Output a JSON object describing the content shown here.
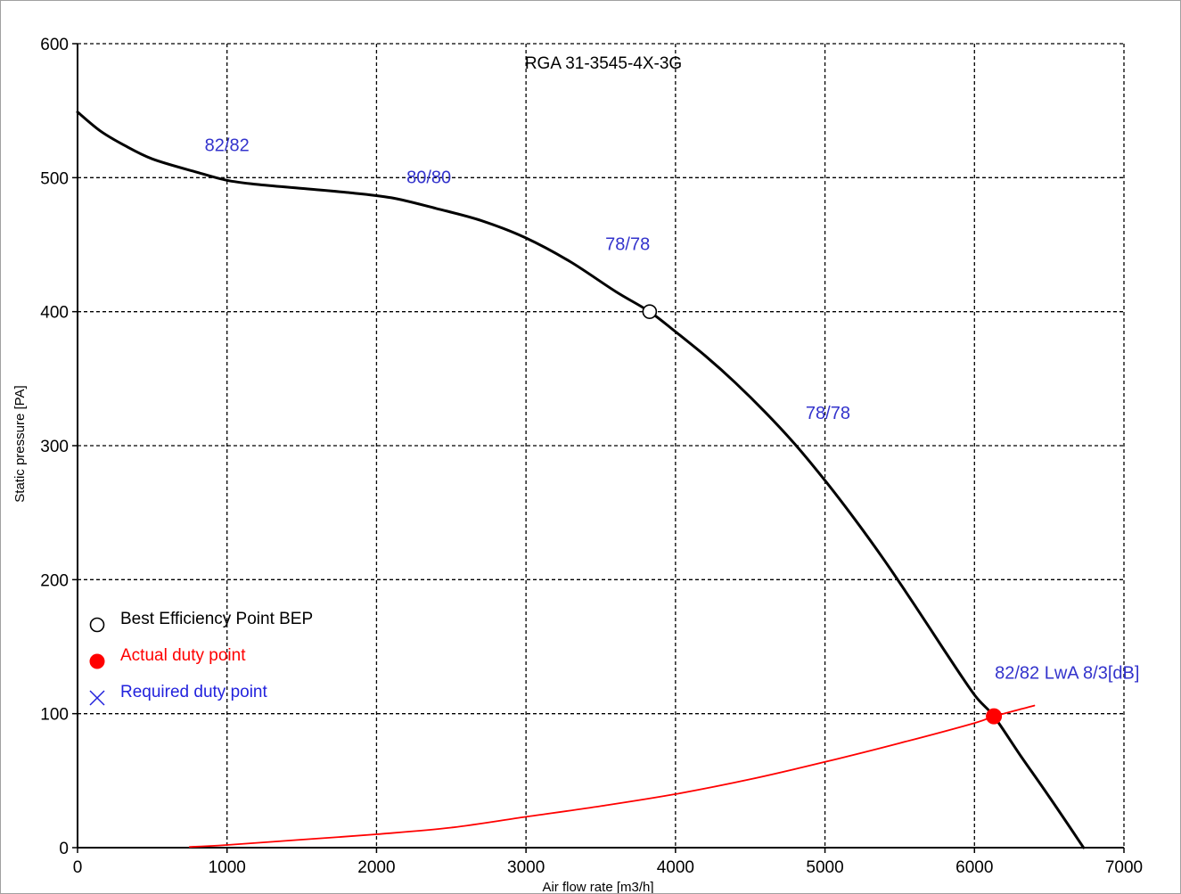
{
  "chart_data": {
    "type": "line",
    "title": "RGA 31-3545-4X-3G",
    "xlabel": "Air flow rate [m3/h]",
    "ylabel": "Static pressure [PA]",
    "xlim": [
      0,
      7000
    ],
    "ylim": [
      0,
      600
    ],
    "xticks": [
      "0",
      "1000",
      "2000",
      "3000",
      "4000",
      "5000",
      "6000",
      "7000"
    ],
    "yticks": [
      "0",
      "100",
      "200",
      "300",
      "400",
      "500",
      "600"
    ],
    "grid": true,
    "series": [
      {
        "name": "fan curve",
        "color": "#000000",
        "x": [
          0,
          150,
          300,
          500,
          800,
          1000,
          1200,
          1500,
          1800,
          2100,
          2400,
          2700,
          3000,
          3300,
          3600,
          3827,
          4000,
          4200,
          4400,
          4600,
          4800,
          5000,
          5200,
          5400,
          5600,
          5800,
          6000,
          6130,
          6300,
          6500,
          6730
        ],
        "y": [
          549,
          535,
          525,
          514,
          504,
          498,
          495,
          492,
          489,
          485,
          477,
          468,
          455,
          437,
          415,
          400,
          385,
          367,
          347,
          325,
          301,
          274,
          245,
          214,
          181,
          147,
          114,
          98,
          70,
          38,
          0
        ]
      },
      {
        "name": "system curve",
        "color": "#ff0000",
        "x": [
          750,
          1000,
          1500,
          2000,
          2500,
          3000,
          3500,
          4000,
          4500,
          5000,
          5500,
          6000,
          6130,
          6400
        ],
        "y": [
          0.5,
          2,
          6,
          10,
          15,
          23,
          31,
          40,
          51,
          64,
          78,
          93,
          98,
          106
        ]
      }
    ],
    "points": {
      "bep": {
        "x": 3827,
        "y": 400
      },
      "duty": {
        "x": 6130,
        "y": 98
      }
    },
    "annotations": [
      {
        "text": "82/82",
        "x": 1000,
        "y": 520
      },
      {
        "text": "80/80",
        "x": 2350,
        "y": 496
      },
      {
        "text": "78/78",
        "x": 3680,
        "y": 446
      },
      {
        "text": "78/78",
        "x": 5020,
        "y": 320
      },
      {
        "text": "82/82 LwA 8/3[dB]",
        "x": 6620,
        "y": 126
      }
    ],
    "annotation_color": "#3333cc",
    "legend": {
      "placement": "left",
      "entries": [
        {
          "label": "Best Efficiency Point BEP",
          "marker": "open-circle",
          "color": "#000000"
        },
        {
          "label": "Actual duty point",
          "marker": "filled-circle",
          "color": "#ff0000"
        },
        {
          "label": "Required duty point",
          "marker": "cross",
          "color": "#2222dd"
        }
      ]
    }
  }
}
